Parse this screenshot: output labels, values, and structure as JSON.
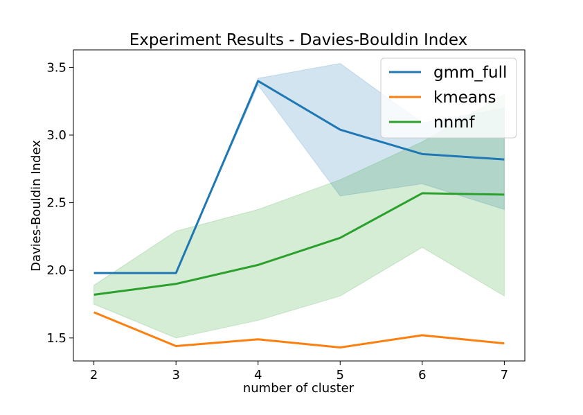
{
  "chart_data": {
    "type": "line",
    "title": "Experiment Results - Davies-Bouldin Index",
    "xlabel": "number of cluster",
    "ylabel": "Davies-Bouldin Index",
    "x": [
      2,
      3,
      4,
      5,
      6,
      7
    ],
    "xticks": [
      "2",
      "3",
      "4",
      "5",
      "6",
      "7"
    ],
    "yticks": [
      "1.5",
      "2.0",
      "2.5",
      "3.0",
      "3.5"
    ],
    "ytick_values": [
      1.5,
      2.0,
      2.5,
      3.0,
      3.5
    ],
    "xlim": [
      1.75,
      7.25
    ],
    "ylim": [
      1.33,
      3.63
    ],
    "grid": false,
    "legend_position": "top-right",
    "series": [
      {
        "name": "gmm_full",
        "color": "#1f77b4",
        "values": [
          1.98,
          1.98,
          3.4,
          3.04,
          2.86,
          2.82
        ],
        "band_low": [
          1.98,
          1.98,
          3.37,
          2.55,
          2.64,
          2.45
        ],
        "band_high": [
          1.98,
          1.98,
          3.42,
          3.53,
          3.09,
          3.2
        ]
      },
      {
        "name": "kmeans",
        "color": "#ff7f0e",
        "values": [
          1.69,
          1.44,
          1.49,
          1.43,
          1.52,
          1.46
        ]
      },
      {
        "name": "nnmf",
        "color": "#2ca02c",
        "values": [
          1.82,
          1.9,
          2.04,
          2.24,
          2.57,
          2.56
        ],
        "band_low": [
          1.75,
          1.5,
          1.63,
          1.81,
          2.17,
          1.81
        ],
        "band_high": [
          1.89,
          2.29,
          2.45,
          2.67,
          2.95,
          3.3
        ]
      }
    ]
  }
}
